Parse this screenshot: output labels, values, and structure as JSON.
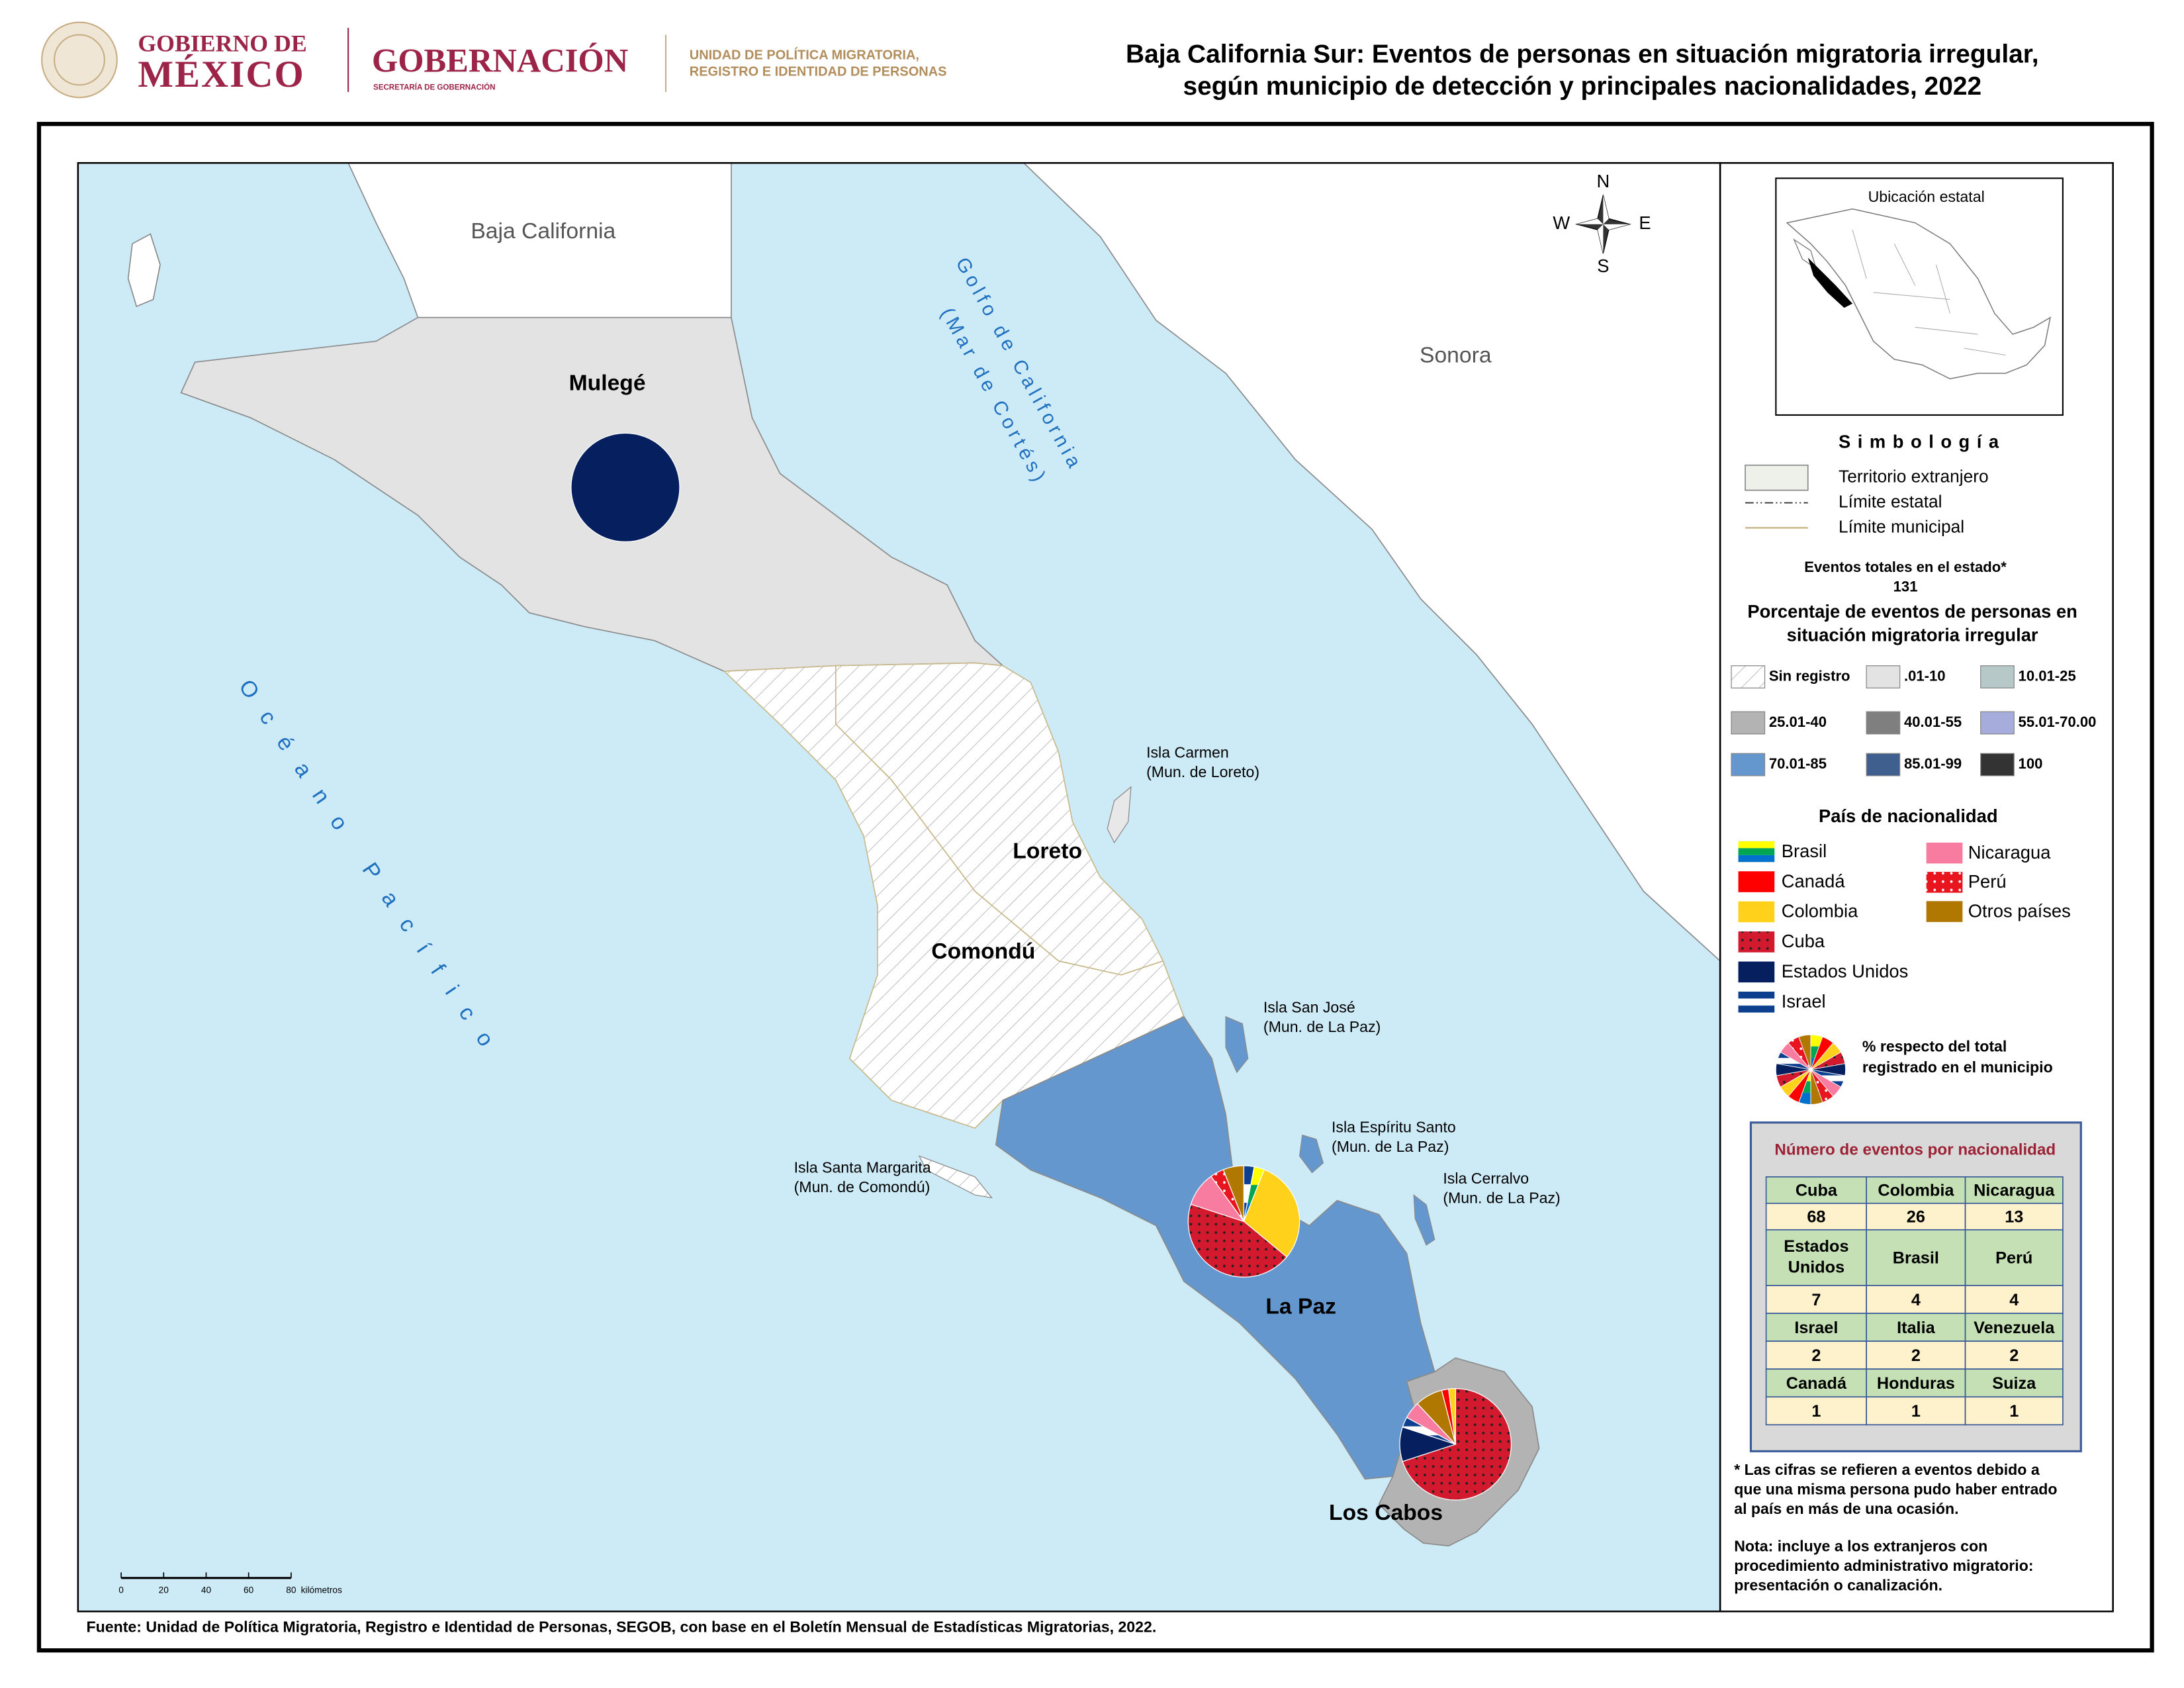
{
  "header": {
    "gov_top": "GOBIERNO DE",
    "gov_bottom": "MÉXICO",
    "ministry": "GOBERNACIÓN",
    "ministry_sub": "SECRETARÍA DE GOBERNACIÓN",
    "unit_lines": [
      "UNIDAD DE POLÍTICA MIGRATORIA,",
      "REGISTRO E IDENTIDAD DE PERSONAS"
    ],
    "title_lines": [
      "Baja California Sur: Eventos de personas en situación migratoria irregular,",
      "según municipio de detección y principales nacionalidades, 2022"
    ]
  },
  "map": {
    "compass": {
      "n": "N",
      "w": "W",
      "e": "E",
      "s": "S"
    },
    "regions": [
      "Baja California",
      "Sonora"
    ],
    "gulf_lines": [
      "Golfo de California",
      "(Mar de Cortés)"
    ],
    "ocean": "Océano Pacífico",
    "municipalities": [
      {
        "name": "Mulegé",
        "class": ".01-10"
      },
      {
        "name": "Loreto",
        "class": "Sin registro"
      },
      {
        "name": "Comondú",
        "class": "Sin registro"
      },
      {
        "name": "La Paz",
        "class": "70.01-85"
      },
      {
        "name": "Los Cabos",
        "class": "25.01-40"
      }
    ],
    "islands": [
      {
        "name": "Isla Carmen",
        "municipality": "(Mun. de Loreto)"
      },
      {
        "name": "Isla San José",
        "municipality": "(Mun. de La Paz)"
      },
      {
        "name": "Isla Espíritu Santo",
        "municipality": "(Mun. de La Paz)"
      },
      {
        "name": "Isla Cerralvo",
        "municipality": "(Mun. de La Paz)"
      },
      {
        "name": "Isla Santa Margarita",
        "municipality": "(Mun. de Comondú)"
      }
    ],
    "pies": [
      {
        "municipality": "Mulegé",
        "slices": [
          {
            "name": "Estados Unidos",
            "value": 100
          }
        ]
      },
      {
        "municipality": "La Paz",
        "slices": [
          {
            "name": "Israel",
            "value": 3
          },
          {
            "name": "Brasil",
            "value": 3
          },
          {
            "name": "Colombia",
            "value": 30
          },
          {
            "name": "Cuba",
            "value": 44
          },
          {
            "name": "Nicaragua",
            "value": 10
          },
          {
            "name": "Perú",
            "value": 4
          },
          {
            "name": "Otros países",
            "value": 6
          }
        ]
      },
      {
        "municipality": "Los Cabos",
        "slices": [
          {
            "name": "Cuba",
            "value": 70
          },
          {
            "name": "Estados Unidos",
            "value": 10
          },
          {
            "name": "Israel",
            "value": 3
          },
          {
            "name": "Nicaragua",
            "value": 5
          },
          {
            "name": "Otros países",
            "value": 8
          },
          {
            "name": "Canadá",
            "value": 2
          },
          {
            "name": "Colombia",
            "value": 2
          }
        ]
      }
    ],
    "scale": {
      "ticks": [
        0,
        20,
        40,
        60,
        80
      ],
      "unit": "kilómetros"
    }
  },
  "legend": {
    "inset_title": "Ubicación estatal",
    "title": "Simbología",
    "symbols": [
      "Territorio extranjero",
      "Límite estatal",
      "Límite municipal"
    ],
    "total_label": "Eventos totales en el estado*",
    "total": 131,
    "pct_title_lines": [
      "Porcentaje de eventos de personas en",
      "situación migratoria irregular"
    ],
    "classes": [
      {
        "label": "Sin registro",
        "color": "#ffffff",
        "hatch": true
      },
      {
        "label": ".01-10",
        "color": "#e3e3e3"
      },
      {
        "label": "10.01-25",
        "color": "#b6c8c8"
      },
      {
        "label": "25.01-40",
        "color": "#b3b3b3"
      },
      {
        "label": "40.01-55",
        "color": "#7f7f7f"
      },
      {
        "label": "55.01-70.00",
        "color": "#a6acdb"
      },
      {
        "label": "70.01-85",
        "color": "#6597cf"
      },
      {
        "label": "85.01-99",
        "color": "#3f5f8f"
      },
      {
        "label": "100",
        "color": "#333333"
      }
    ],
    "nationality_title": "País de nacionalidad",
    "nationalities": [
      {
        "name": "Brasil",
        "color": "#0072ce",
        "stripes": [
          "#ffff00",
          "#00a651",
          "#0072ce"
        ]
      },
      {
        "name": "Canadá",
        "color": "#ff0000"
      },
      {
        "name": "Colombia",
        "color": "#ffd11a"
      },
      {
        "name": "Cuba",
        "color": "#d2192d",
        "dots": "#222222"
      },
      {
        "name": "Estados Unidos",
        "color": "#06205f"
      },
      {
        "name": "Israel",
        "color": "#0d3f8f",
        "stripes": [
          "#0d3f8f",
          "#ffffff",
          "#0d3f8f"
        ]
      },
      {
        "name": "Nicaragua",
        "color": "#f87ca0"
      },
      {
        "name": "Perú",
        "color": "#e8141e",
        "dots": "#ffffff"
      },
      {
        "name": "Otros países",
        "color": "#b07800"
      }
    ],
    "pie_note_lines": [
      "% respecto del total",
      "registrado en el municipio"
    ]
  },
  "table": {
    "title": "Número de eventos por nacionalidad",
    "rows": [
      [
        "Cuba",
        "Colombia",
        "Nicaragua"
      ],
      [
        68,
        26,
        13
      ],
      [
        [
          "Estados",
          "Unidos"
        ],
        "Brasil",
        "Perú"
      ],
      [
        7,
        4,
        4
      ],
      [
        "Israel",
        "Italia",
        "Venezuela"
      ],
      [
        2,
        2,
        2
      ],
      [
        "Canadá",
        "Honduras",
        "Suiza"
      ],
      [
        1,
        1,
        1
      ]
    ]
  },
  "notes": [
    [
      "* Las cifras se refieren a eventos debido a",
      "que una misma persona pudo haber entrado",
      "al país en más de una ocasión."
    ],
    [
      "Nota: incluye a los extranjeros con",
      "procedimiento administrativo migratorio:",
      "presentación o canalización."
    ]
  ],
  "source": "Fuente: Unidad de Política Migratoria, Registro e Identidad de Personas, SEGOB, con base en el Boletín Mensual de Estadísticas Migratorias, 2022."
}
